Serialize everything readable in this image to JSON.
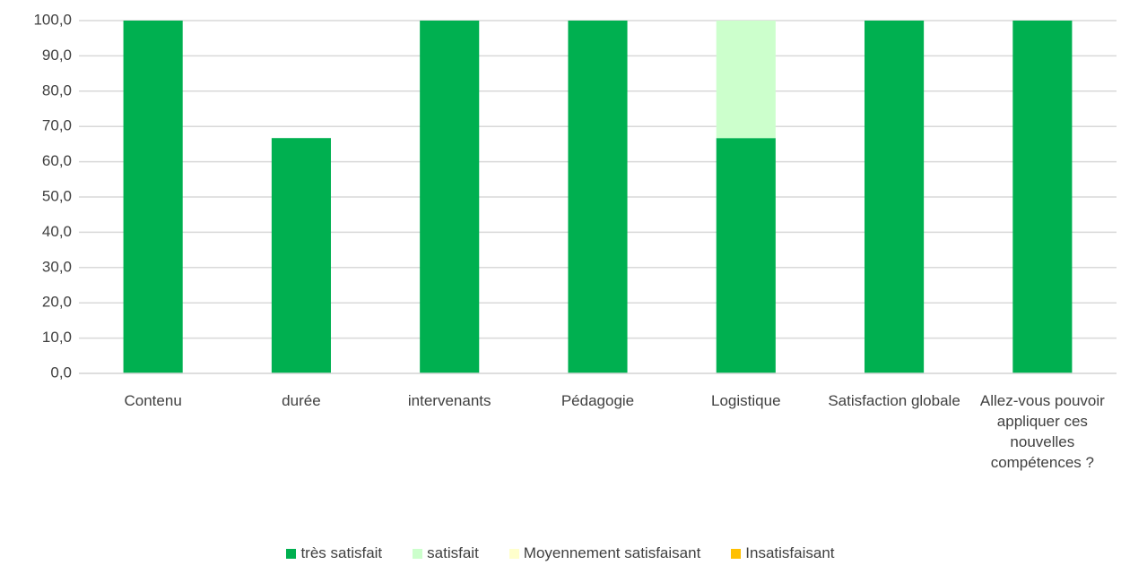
{
  "chart_data": {
    "type": "stacked_bar",
    "categories": [
      "Contenu",
      "durée",
      "intervenants",
      "Pédagogie",
      "Logistique",
      "Satisfaction globale",
      "Allez-vous pouvoir appliquer  ces nouvelles compétences ?"
    ],
    "series": [
      {
        "name": "très satisfait",
        "color": "#00b050",
        "values": [
          100,
          66.7,
          100,
          100,
          66.7,
          100,
          100
        ]
      },
      {
        "name": "satisfait",
        "color": "#ccffcc",
        "values": [
          0,
          0,
          0,
          0,
          33.3,
          0,
          0
        ]
      },
      {
        "name": "Moyennement  satisfaisant",
        "color": "#ffffcc",
        "values": [
          0,
          0,
          0,
          0,
          0,
          0,
          0
        ]
      },
      {
        "name": "Insatisfaisant",
        "color": "#ffc000",
        "values": [
          0,
          0,
          0,
          0,
          0,
          0,
          0
        ]
      }
    ],
    "ylim": [
      0,
      100
    ],
    "yticks": [
      {
        "value": 0,
        "label": "0,0"
      },
      {
        "value": 10,
        "label": "10,0"
      },
      {
        "value": 20,
        "label": "20,0"
      },
      {
        "value": 30,
        "label": "30,0"
      },
      {
        "value": 40,
        "label": "40,0"
      },
      {
        "value": 50,
        "label": "50,0"
      },
      {
        "value": 60,
        "label": "60,0"
      },
      {
        "value": 70,
        "label": "70,0"
      },
      {
        "value": 80,
        "label": "80,0"
      },
      {
        "value": 90,
        "label": "90,0"
      },
      {
        "value": 100,
        "label": "100,0"
      }
    ],
    "grid": true,
    "legend": "bottom"
  }
}
